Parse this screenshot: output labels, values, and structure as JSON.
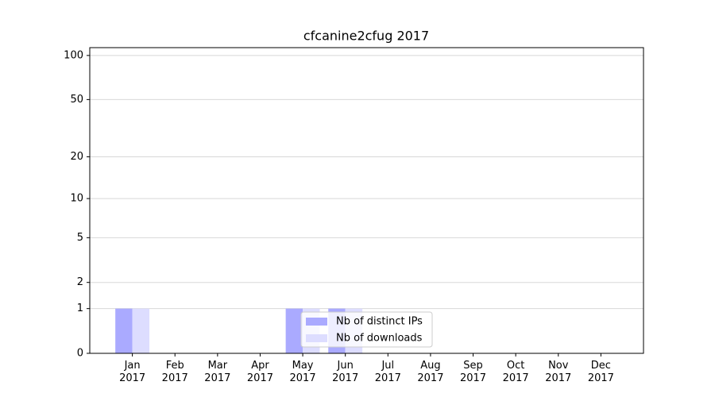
{
  "chart_data": {
    "type": "bar",
    "title": "cfcanine2cfug 2017",
    "categories": [
      "Jan\n2017",
      "Feb\n2017",
      "Mar\n2017",
      "Apr\n2017",
      "May\n2017",
      "Jun\n2017",
      "Jul\n2017",
      "Aug\n2017",
      "Sep\n2017",
      "Oct\n2017",
      "Nov\n2017",
      "Dec\n2017"
    ],
    "series": [
      {
        "name": "Nb of distinct IPs",
        "color": "#aaaaff",
        "values": [
          1,
          0,
          0,
          0,
          1,
          1,
          0,
          0,
          0,
          0,
          0,
          0
        ]
      },
      {
        "name": "Nb of downloads",
        "color": "#ddddff",
        "values": [
          1,
          0,
          0,
          0,
          1,
          1,
          0,
          0,
          0,
          0,
          0,
          0
        ]
      }
    ],
    "yscale": "log1p",
    "ylim": [
      0,
      113
    ],
    "yticks": [
      0,
      1,
      2,
      5,
      10,
      20,
      50,
      100
    ],
    "grid": true,
    "legend": "lower center"
  }
}
